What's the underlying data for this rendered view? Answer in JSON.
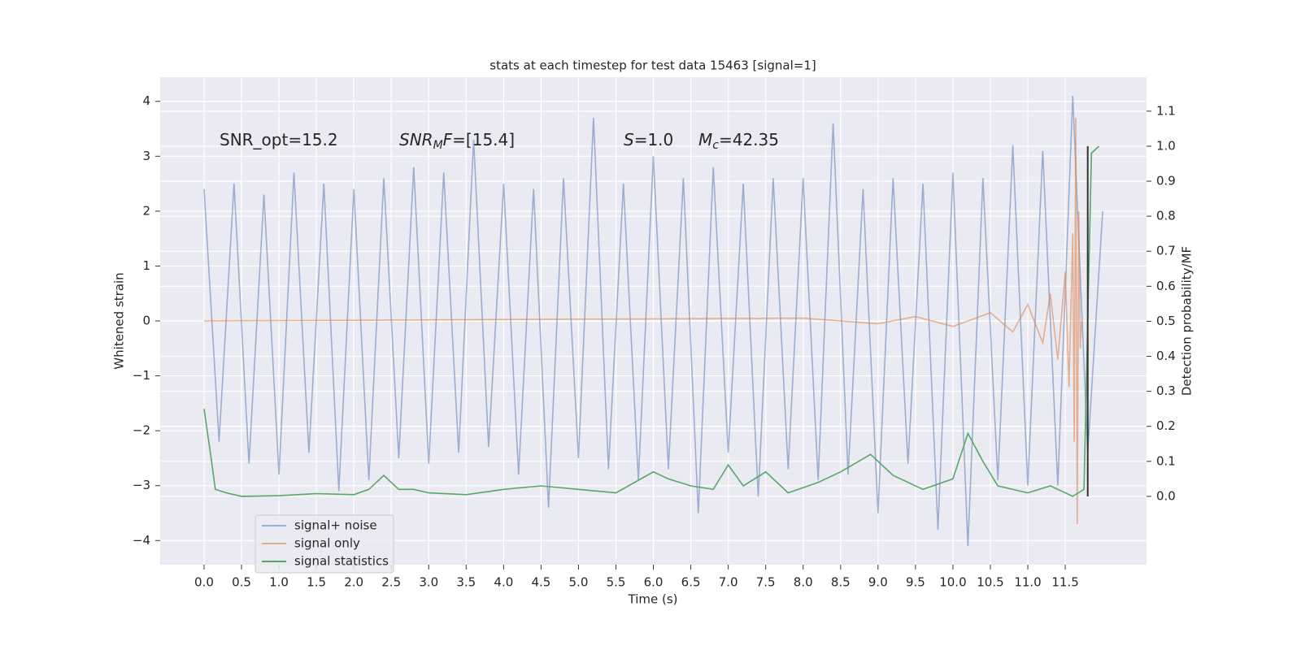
{
  "chart_data": {
    "type": "line",
    "title": "stats at each timestep for test data 15463 [signal=1]",
    "xlabel": "Time (s)",
    "ylabel": "Whitened strain",
    "y2label": "Detection probability/MF",
    "annotations": [
      [
        {
          "text": "SNR_opt=15.2",
          "style": "normal"
        }
      ],
      [
        {
          "text": "SNR",
          "style": "italic"
        },
        {
          "text": "M",
          "style": "sub"
        },
        {
          "text": "F",
          "style": "italic"
        },
        {
          "text": "=[15.4]",
          "style": "normal"
        }
      ],
      [
        {
          "text": "S",
          "style": "italic"
        },
        {
          "text": "=1.0",
          "style": "normal"
        }
      ],
      [
        {
          "text": "M",
          "style": "italic"
        },
        {
          "text": "c",
          "style": "sub"
        },
        {
          "text": "=42.35",
          "style": "normal"
        }
      ]
    ],
    "xlim": [
      -0.586,
      12.585
    ],
    "ylim": [
      -4.44,
      4.44
    ],
    "y2lim": [
      -0.195,
      1.197
    ],
    "xticks": [
      {
        "value": 0,
        "label": "0.0"
      },
      0.5,
      {
        "value": 1,
        "label": "1.0"
      },
      1.5,
      {
        "value": 2,
        "label": "2.0"
      },
      2.5,
      {
        "value": 3,
        "label": "3.0"
      },
      3.5,
      {
        "value": 4,
        "label": "4.0"
      },
      4.5,
      {
        "value": 5,
        "label": "5.0"
      },
      5.5,
      {
        "value": 6,
        "label": "6.0"
      },
      6.5,
      {
        "value": 7,
        "label": "7.0"
      },
      7.5,
      {
        "value": 8,
        "label": "8.0"
      },
      8.5,
      {
        "value": 9,
        "label": "9.0"
      },
      9.5,
      {
        "value": 10,
        "label": "10.0"
      },
      10.5,
      {
        "value": 11,
        "label": "11.0"
      },
      11.5
    ],
    "yticks": [
      {
        "value": -4,
        "label": "−4"
      },
      {
        "value": -3,
        "label": "−3"
      },
      {
        "value": -2,
        "label": "−2"
      },
      {
        "value": -1,
        "label": "−1"
      },
      0,
      1,
      2,
      3,
      4
    ],
    "y2ticks": [
      {
        "value": 0,
        "label": "0.0"
      },
      0.1,
      0.2,
      0.3,
      0.4,
      0.5,
      0.6,
      0.7,
      0.8,
      0.9,
      {
        "value": 1,
        "label": "1.0"
      },
      1.1
    ],
    "grid": true,
    "legend": "lower left",
    "series": [
      {
        "name": "signal+ noise",
        "color": "#4c72b0",
        "opacity": 0.5,
        "x": [
          0.0,
          0.2,
          0.4,
          0.6,
          0.8,
          1.0,
          1.2,
          1.4,
          1.6,
          1.8,
          2.0,
          2.2,
          2.4,
          2.6,
          2.8,
          3.0,
          3.2,
          3.4,
          3.6,
          3.8,
          4.0,
          4.2,
          4.4,
          4.6,
          4.8,
          5.0,
          5.2,
          5.4,
          5.6,
          5.8,
          6.0,
          6.2,
          6.4,
          6.6,
          6.8,
          7.0,
          7.2,
          7.4,
          7.6,
          7.8,
          8.0,
          8.2,
          8.4,
          8.6,
          8.8,
          9.0,
          9.2,
          9.4,
          9.6,
          9.8,
          10.0,
          10.2,
          10.4,
          10.6,
          10.8,
          11.0,
          11.2,
          11.4,
          11.6,
          11.8,
          12.0
        ],
        "values": [
          2.4,
          -2.2,
          2.5,
          -2.6,
          2.3,
          -2.8,
          2.7,
          -2.4,
          2.5,
          -3.1,
          2.4,
          -2.9,
          2.6,
          -2.5,
          2.8,
          -2.6,
          2.7,
          -2.4,
          3.3,
          -2.3,
          2.5,
          -2.8,
          2.4,
          -3.4,
          2.6,
          -2.5,
          3.7,
          -2.7,
          2.5,
          -2.9,
          3.0,
          -2.7,
          2.6,
          -3.5,
          2.8,
          -2.4,
          2.5,
          -3.2,
          2.6,
          -2.7,
          2.6,
          -2.9,
          3.6,
          -2.8,
          2.4,
          -3.5,
          2.6,
          -2.6,
          2.5,
          -3.8,
          2.7,
          -4.1,
          2.6,
          -2.9,
          3.2,
          -3.0,
          3.1,
          -3.0,
          4.1,
          -2.4,
          2.0
        ]
      },
      {
        "name": "signal only",
        "color": "#dd8452",
        "opacity": 0.6,
        "x": [
          0,
          8.0,
          9.0,
          9.5,
          10.0,
          10.5,
          10.8,
          11.0,
          11.2,
          11.3,
          11.4,
          11.5,
          11.55,
          11.6,
          11.62,
          11.64,
          11.66,
          11.68,
          11.7,
          11.72
        ],
        "values": [
          0,
          0.05,
          -0.05,
          0.08,
          -0.1,
          0.15,
          -0.2,
          0.3,
          -0.4,
          0.5,
          -0.7,
          0.9,
          -1.2,
          1.6,
          -2.2,
          3.7,
          -3.7,
          2.0,
          -0.5,
          0
        ]
      },
      {
        "name": "signal statistics",
        "color": "#55a868",
        "opacity": 1,
        "axis": "y2",
        "x": [
          0,
          0.1,
          0.15,
          0.3,
          0.5,
          1.0,
          1.5,
          2.0,
          2.2,
          2.4,
          2.6,
          2.8,
          3.0,
          3.5,
          4.0,
          4.5,
          5.0,
          5.5,
          6.0,
          6.2,
          6.5,
          6.8,
          7.0,
          7.2,
          7.5,
          7.8,
          8.2,
          8.5,
          8.9,
          9.2,
          9.6,
          10.0,
          10.2,
          10.4,
          10.6,
          11.0,
          11.3,
          11.6,
          11.75,
          11.8,
          11.85,
          11.95
        ],
        "values": [
          0.25,
          0.1,
          0.02,
          0.01,
          0.0,
          0.002,
          0.008,
          0.005,
          0.02,
          0.06,
          0.02,
          0.02,
          0.01,
          0.005,
          0.02,
          0.03,
          0.02,
          0.01,
          0.07,
          0.05,
          0.03,
          0.02,
          0.09,
          0.03,
          0.07,
          0.01,
          0.04,
          0.07,
          0.12,
          0.06,
          0.02,
          0.05,
          0.18,
          0.1,
          0.03,
          0.01,
          0.03,
          0.0,
          0.02,
          0.5,
          0.98,
          1.0
        ]
      }
    ],
    "vline": {
      "x": 11.8,
      "ymin": 0,
      "ymax": 1,
      "color": "#333333",
      "axis": "y2"
    }
  }
}
